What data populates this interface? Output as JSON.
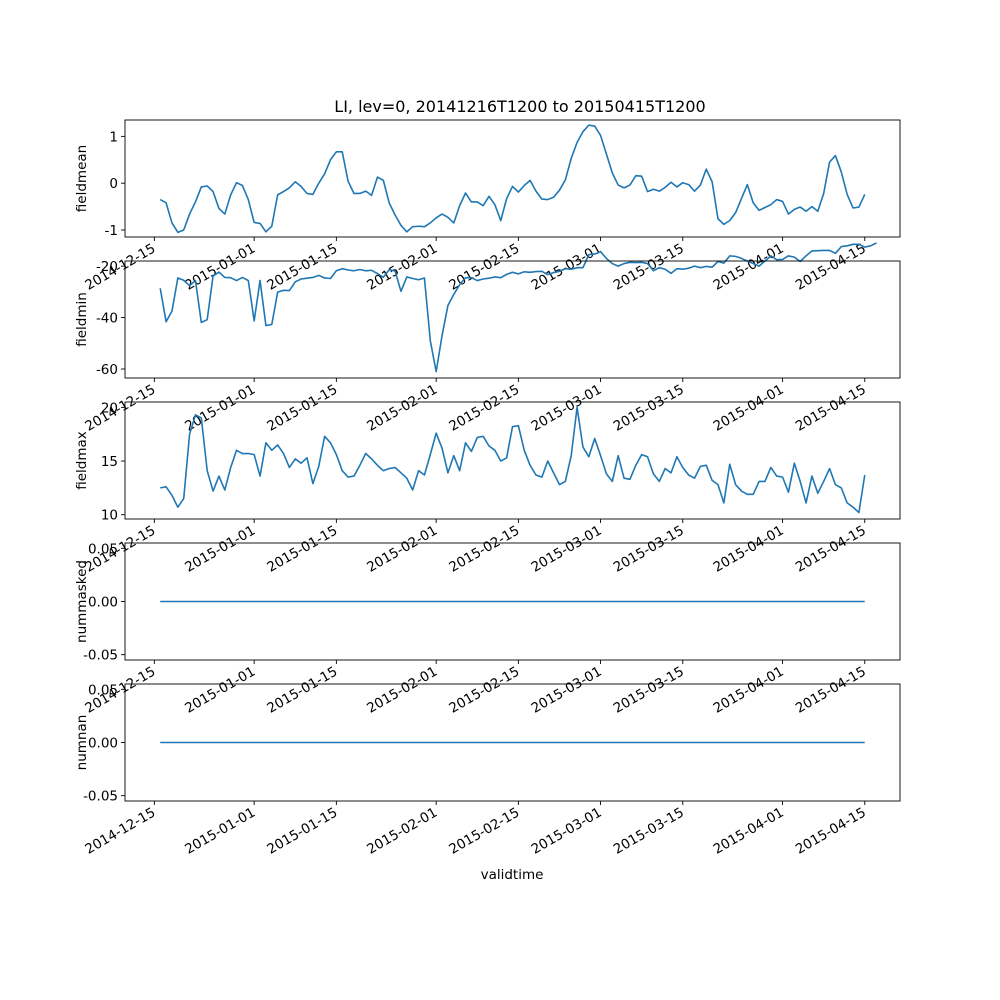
{
  "title": "LI, lev=0, 20141216T1200 to 20150415T1200",
  "xlabel": "validtime",
  "x_ticks": [
    "2014-12-15",
    "2015-01-01",
    "2015-01-15",
    "2015-02-01",
    "2015-02-15",
    "2015-03-01",
    "2015-03-15",
    "2015-04-01",
    "2015-04-15"
  ],
  "line_color": "#1f77b4",
  "chart_data": [
    {
      "type": "line",
      "ylabel": "fieldmean",
      "ylim": [
        -1.15,
        1.35
      ],
      "yticks": [
        "-1",
        "0",
        "1"
      ],
      "x_start": "2014-12-16",
      "x_end": "2015-04-15",
      "step": "daily",
      "values": [
        -0.35,
        -0.42,
        -0.85,
        -1.05,
        -1.0,
        -0.66,
        -0.4,
        -0.08,
        -0.06,
        -0.18,
        -0.54,
        -0.66,
        -0.25,
        0.01,
        -0.05,
        -0.35,
        -0.84,
        -0.86,
        -1.04,
        -0.92,
        -0.25,
        -0.18,
        -0.1,
        0.03,
        -0.07,
        -0.22,
        -0.24,
        0.0,
        0.2,
        0.5,
        0.67,
        0.67,
        0.04,
        -0.22,
        -0.22,
        -0.17,
        -0.26,
        0.13,
        0.06,
        -0.42,
        -0.68,
        -0.9,
        -1.04,
        -0.93,
        -0.92,
        -0.93,
        -0.85,
        -0.74,
        -0.66,
        -0.73,
        -0.85,
        -0.48,
        -0.21,
        -0.4,
        -0.4,
        -0.48,
        -0.28,
        -0.46,
        -0.8,
        -0.33,
        -0.07,
        -0.19,
        -0.05,
        0.06,
        -0.17,
        -0.34,
        -0.35,
        -0.3,
        -0.15,
        0.07,
        0.53,
        0.87,
        1.1,
        1.24,
        1.22,
        1.02,
        0.62,
        0.22,
        -0.04,
        -0.1,
        -0.04,
        0.16,
        0.15,
        -0.18,
        -0.13,
        -0.17,
        -0.09,
        0.02,
        -0.08,
        0.01,
        -0.03,
        -0.17,
        -0.04,
        0.3,
        0.03,
        -0.76,
        -0.88,
        -0.8,
        -0.63,
        -0.33,
        -0.03,
        -0.42,
        -0.58,
        -0.52,
        -0.46,
        -0.35,
        -0.39,
        -0.66,
        -0.56,
        -0.51,
        -0.6,
        -0.5,
        -0.6,
        -0.22,
        0.45,
        0.59,
        0.24,
        -0.24,
        -0.53,
        -0.51,
        -0.24
      ]
    },
    {
      "type": "line",
      "ylabel": "fieldmin",
      "ylim": [
        -63.5,
        -18.0
      ],
      "yticks": [
        "-60",
        "-40",
        "-20"
      ],
      "x_start": "2014-12-16",
      "x_end": "2015-04-15",
      "step": "daily",
      "values": [
        -28.6,
        -41.6,
        -37.5,
        -24.6,
        -25.5,
        -27.6,
        -25.6,
        -41.9,
        -40.8,
        -23.8,
        -22.3,
        -24.4,
        -24.5,
        -25.6,
        -24.4,
        -25.6,
        -41.3,
        -25.6,
        -43.1,
        -42.7,
        -30.1,
        -29.4,
        -29.5,
        -26.1,
        -25.0,
        -24.7,
        -24.4,
        -23.6,
        -24.6,
        -24.8,
        -21.8,
        -21.0,
        -21.5,
        -21.8,
        -21.3,
        -21.8,
        -21.6,
        -22.9,
        -24.3,
        -21.4,
        -21.9,
        -29.8,
        -24.2,
        -24.8,
        -25.3,
        -24.6,
        -49.0,
        -61.0,
        -47.0,
        -35.3,
        -31.0,
        -27.2,
        -24.5,
        -24.5,
        -25.6,
        -25.0,
        -24.7,
        -24.2,
        -24.5,
        -23.2,
        -22.4,
        -23.0,
        -22.2,
        -22.4,
        -22.1,
        -22.0,
        -23.3,
        -22.5,
        -22.0,
        -21.0,
        -21.2,
        -20.6,
        -20.6,
        -15.5,
        -15.3,
        -14.4,
        -17.0,
        -19.0,
        -20.0,
        -19.0,
        -18.5,
        -18.6,
        -18.5,
        -19.0,
        -21.8,
        -20.6,
        -21.2,
        -22.8,
        -21.0,
        -21.2,
        -20.8,
        -20.0,
        -20.6,
        -20.1,
        -20.4,
        -18.2,
        -18.8,
        -16.0,
        -16.2,
        -17.0,
        -18.0,
        -19.0,
        -20.0,
        -18.0,
        -16.0,
        -17.5,
        -17.4,
        -16.0,
        -16.5,
        -18.2,
        -16.0,
        -14.1,
        -14.0,
        -13.9,
        -13.9,
        -15.0,
        -12.4,
        -12.1,
        -11.5,
        -11.5,
        -12.6,
        -12.1,
        -11.0
      ]
    },
    {
      "type": "line",
      "ylabel": "fieldmax",
      "ylim": [
        9.6,
        20.5
      ],
      "yticks": [
        "10",
        "15",
        "20"
      ],
      "x_start": "2014-12-16",
      "x_end": "2015-04-15",
      "step": "daily",
      "values": [
        12.5,
        12.6,
        11.8,
        10.7,
        11.5,
        17.5,
        19.3,
        19.0,
        14.1,
        12.2,
        13.6,
        12.3,
        14.4,
        16.0,
        15.7,
        15.7,
        15.6,
        13.6,
        16.7,
        16.0,
        16.5,
        15.7,
        14.4,
        15.2,
        14.8,
        15.3,
        12.9,
        14.5,
        17.3,
        16.7,
        15.6,
        14.1,
        13.5,
        13.6,
        14.6,
        15.7,
        15.2,
        14.6,
        14.1,
        14.3,
        14.4,
        13.9,
        13.4,
        12.3,
        14.1,
        13.7,
        15.6,
        17.6,
        16.2,
        13.9,
        15.5,
        14.1,
        16.7,
        15.9,
        17.2,
        17.3,
        16.4,
        16.0,
        15.0,
        15.3,
        18.2,
        18.3,
        16.0,
        14.6,
        13.7,
        13.5,
        15.0,
        13.9,
        12.8,
        13.1,
        15.5,
        20.0,
        16.3,
        15.4,
        17.1,
        15.5,
        13.8,
        13.1,
        15.5,
        13.4,
        13.3,
        14.6,
        15.6,
        15.4,
        13.8,
        13.1,
        14.3,
        13.9,
        15.4,
        14.4,
        13.7,
        13.4,
        14.5,
        14.6,
        13.2,
        12.8,
        11.1,
        14.7,
        12.8,
        12.2,
        11.9,
        11.9,
        13.1,
        13.1,
        14.4,
        13.6,
        13.5,
        12.1,
        14.8,
        13.1,
        11.1,
        13.6,
        12.0,
        13.1,
        14.3,
        12.8,
        12.5,
        11.1,
        10.7,
        10.2,
        13.7
      ]
    },
    {
      "type": "line",
      "ylabel": "nummasked",
      "ylim": [
        -0.055,
        0.055
      ],
      "yticks": [
        "-0.05",
        "0.00",
        "0.05"
      ],
      "x_start": "2014-12-16",
      "x_end": "2015-04-15",
      "step": "daily",
      "constant_value": 0.0
    },
    {
      "type": "line",
      "ylabel": "numnan",
      "ylim": [
        -0.055,
        0.055
      ],
      "yticks": [
        "-0.05",
        "0.00",
        "0.05"
      ],
      "x_start": "2014-12-16",
      "x_end": "2015-04-15",
      "step": "daily",
      "constant_value": 0.0
    }
  ]
}
